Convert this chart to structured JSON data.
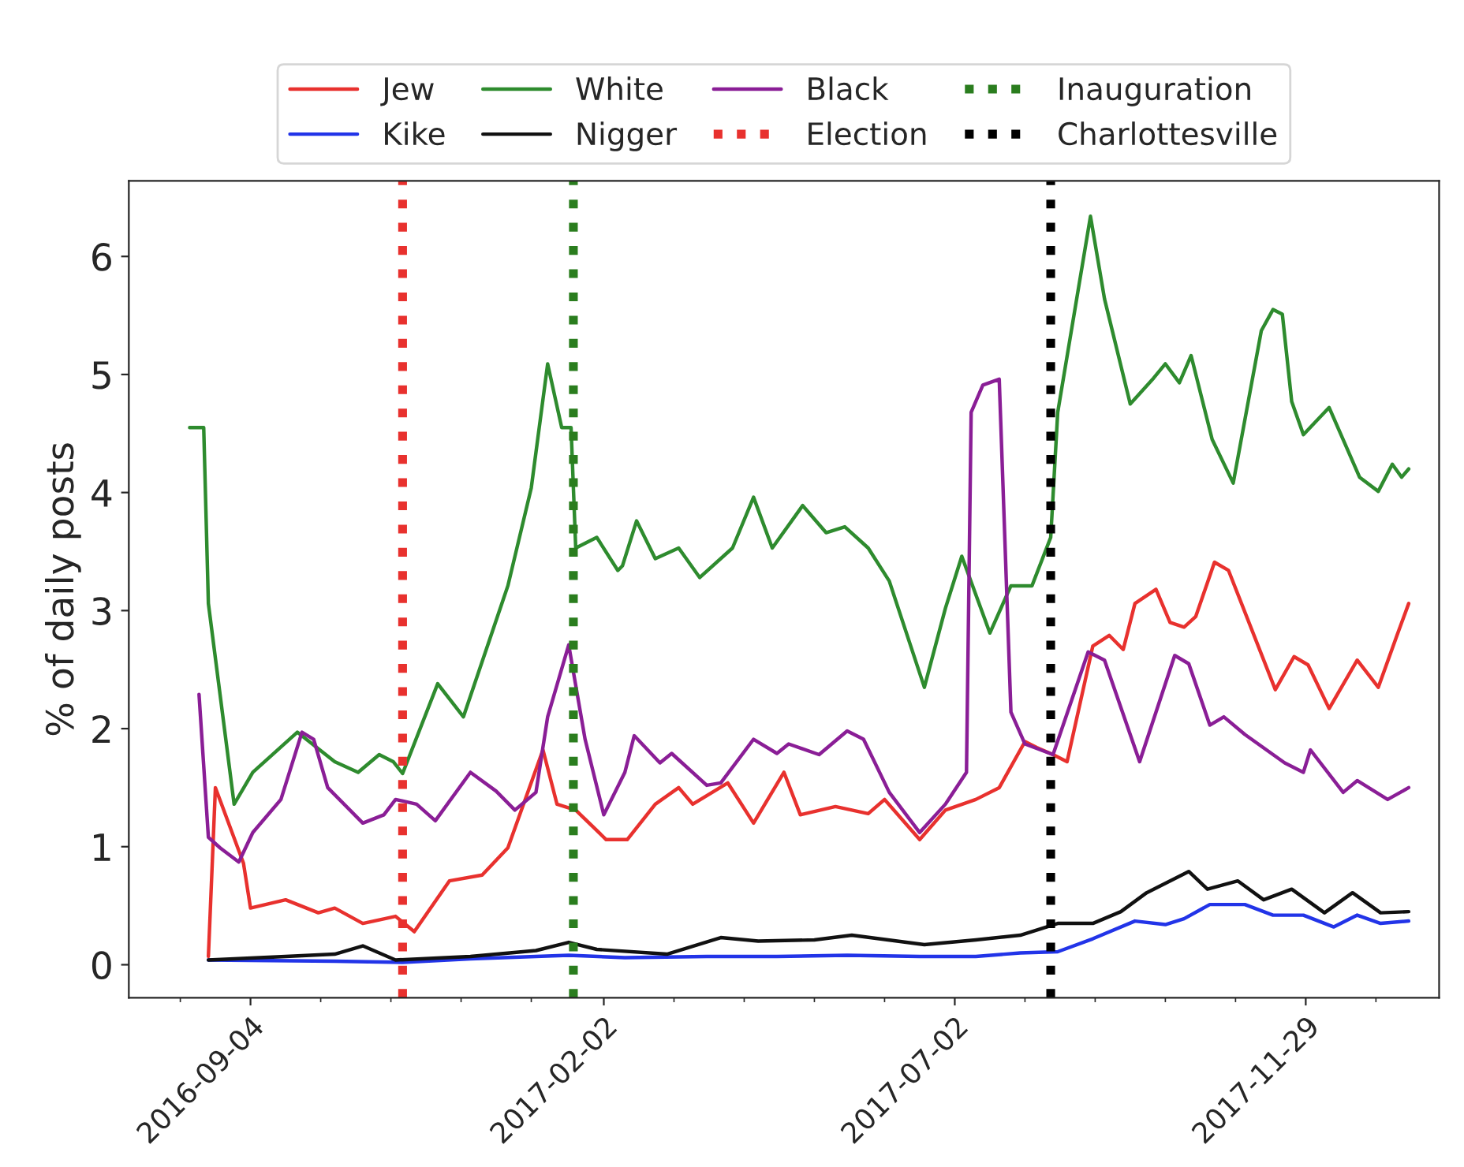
{
  "chart_data": {
    "type": "line",
    "ylabel": "% of daily posts",
    "xlim": [
      "2016-07-14",
      "2018-01-25"
    ],
    "ylim": [
      -0.28,
      6.64
    ],
    "xticks": [
      {
        "value": "2016-08-05",
        "label": null
      },
      "2016-09-04",
      {
        "value": "2016-10-04",
        "label": null
      },
      {
        "value": "2016-11-03",
        "label": null
      },
      {
        "value": "2016-12-03",
        "label": null
      },
      {
        "value": "2017-01-02",
        "label": null
      },
      "2017-02-02",
      {
        "value": "2017-03-04",
        "label": null
      },
      {
        "value": "2017-04-03",
        "label": null
      },
      {
        "value": "2017-05-03",
        "label": null
      },
      {
        "value": "2017-06-02",
        "label": null
      },
      "2017-07-02",
      {
        "value": "2017-08-01",
        "label": null
      },
      {
        "value": "2017-08-31",
        "label": null
      },
      {
        "value": "2017-09-30",
        "label": null
      },
      {
        "value": "2017-10-30",
        "label": null
      },
      "2017-11-29",
      {
        "value": "2017-12-29",
        "label": null
      }
    ],
    "yticks": [
      0,
      1,
      2,
      3,
      4,
      5,
      6
    ],
    "grid": false,
    "legend": "top",
    "line_style": "solid",
    "marker": "none",
    "series": [
      {
        "name": "Jew",
        "color": "#e8312e",
        "x": [
          "2016-08-17",
          "2016-08-20",
          "2016-09-01",
          "2016-09-04",
          "2016-09-19",
          "2016-10-03",
          "2016-10-10",
          "2016-10-22",
          "2016-11-05",
          "2016-11-13",
          "2016-11-28",
          "2016-12-12",
          "2016-12-23",
          "2017-01-07",
          "2017-01-13",
          "2017-01-21",
          "2017-02-03",
          "2017-02-12",
          "2017-02-24",
          "2017-03-06",
          "2017-03-12",
          "2017-03-27",
          "2017-04-07",
          "2017-04-20",
          "2017-04-27",
          "2017-05-12",
          "2017-05-26",
          "2017-06-02",
          "2017-06-17",
          "2017-06-28",
          "2017-07-11",
          "2017-07-21",
          "2017-08-01",
          "2017-08-06",
          "2017-08-13",
          "2017-08-19",
          "2017-08-30",
          "2017-09-06",
          "2017-09-12",
          "2017-09-17",
          "2017-09-26",
          "2017-10-02",
          "2017-10-08",
          "2017-10-13",
          "2017-10-21",
          "2017-10-27",
          "2017-11-16",
          "2017-11-24",
          "2017-11-30",
          "2017-12-09",
          "2017-12-21",
          "2017-12-30",
          "2018-01-07",
          "2018-01-12"
        ],
        "values": [
          0.07,
          1.5,
          0.86,
          0.48,
          0.55,
          0.44,
          0.48,
          0.35,
          0.41,
          0.28,
          0.71,
          0.76,
          0.99,
          1.82,
          1.36,
          1.31,
          1.06,
          1.06,
          1.36,
          1.5,
          1.36,
          1.54,
          1.2,
          1.63,
          1.27,
          1.34,
          1.28,
          1.4,
          1.06,
          1.31,
          1.4,
          1.5,
          1.89,
          1.84,
          1.78,
          1.72,
          2.7,
          2.79,
          2.67,
          3.06,
          3.18,
          2.9,
          2.86,
          2.95,
          3.41,
          3.34,
          2.33,
          2.61,
          2.54,
          2.17,
          2.58,
          2.35,
          2.79,
          3.06
        ]
      },
      {
        "name": "Kike",
        "color": "#2234e8",
        "x": [
          "2016-08-17",
          "2016-10-10",
          "2016-11-08",
          "2016-12-07",
          "2017-01-18",
          "2017-02-11",
          "2017-03-18",
          "2017-04-17",
          "2017-05-17",
          "2017-06-17",
          "2017-07-11",
          "2017-07-30",
          "2017-08-15",
          "2017-08-30",
          "2017-09-17",
          "2017-09-30",
          "2017-10-08",
          "2017-10-19",
          "2017-11-03",
          "2017-11-15",
          "2017-11-28",
          "2017-12-11",
          "2017-12-21",
          "2017-12-31",
          "2018-01-12"
        ],
        "values": [
          0.04,
          0.03,
          0.02,
          0.05,
          0.08,
          0.06,
          0.07,
          0.07,
          0.08,
          0.07,
          0.07,
          0.1,
          0.11,
          0.22,
          0.37,
          0.34,
          0.39,
          0.51,
          0.51,
          0.42,
          0.42,
          0.32,
          0.42,
          0.35,
          0.37
        ]
      },
      {
        "name": "White",
        "color": "#2e8b2e",
        "x": [
          "2016-08-09",
          "2016-08-15",
          "2016-08-17",
          "2016-08-28",
          "2016-09-05",
          "2016-09-24",
          "2016-10-10",
          "2016-10-20",
          "2016-10-29",
          "2016-11-04",
          "2016-11-08",
          "2016-11-23",
          "2016-12-04",
          "2016-12-23",
          "2017-01-02",
          "2017-01-09",
          "2017-01-15",
          "2017-01-19",
          "2017-01-21",
          "2017-01-30",
          "2017-02-08",
          "2017-02-10",
          "2017-02-16",
          "2017-02-24",
          "2017-03-06",
          "2017-03-15",
          "2017-03-29",
          "2017-04-07",
          "2017-04-15",
          "2017-04-28",
          "2017-05-08",
          "2017-05-16",
          "2017-05-26",
          "2017-06-04",
          "2017-06-19",
          "2017-06-28",
          "2017-07-05",
          "2017-07-17",
          "2017-07-26",
          "2017-08-04",
          "2017-08-12",
          "2017-08-15",
          "2017-08-29",
          "2017-09-04",
          "2017-09-15",
          "2017-09-25",
          "2017-09-30",
          "2017-10-06",
          "2017-10-11",
          "2017-10-20",
          "2017-10-29",
          "2017-11-10",
          "2017-11-15",
          "2017-11-19",
          "2017-11-23",
          "2017-11-28",
          "2017-12-09",
          "2017-12-22",
          "2017-12-30",
          "2018-01-05",
          "2018-01-09",
          "2018-01-12"
        ],
        "values": [
          4.55,
          4.55,
          3.06,
          1.36,
          1.63,
          1.97,
          1.72,
          1.63,
          1.78,
          1.72,
          1.62,
          2.38,
          2.1,
          3.21,
          4.04,
          5.09,
          4.55,
          4.55,
          3.53,
          3.62,
          3.34,
          3.38,
          3.76,
          3.44,
          3.53,
          3.28,
          3.53,
          3.96,
          3.53,
          3.89,
          3.66,
          3.71,
          3.53,
          3.25,
          2.35,
          3.02,
          3.46,
          2.81,
          3.21,
          3.21,
          3.62,
          4.68,
          6.34,
          5.64,
          4.75,
          4.97,
          5.09,
          4.93,
          5.16,
          4.45,
          4.08,
          5.37,
          5.55,
          5.51,
          4.77,
          4.49,
          4.72,
          4.13,
          4.01,
          4.24,
          4.13,
          4.2
        ]
      },
      {
        "name": "Nigger",
        "color": "#111111",
        "x": [
          "2016-08-17",
          "2016-09-19",
          "2016-10-10",
          "2016-10-22",
          "2016-11-05",
          "2016-12-07",
          "2017-01-04",
          "2017-01-18",
          "2017-01-30",
          "2017-03-01",
          "2017-03-24",
          "2017-04-09",
          "2017-05-03",
          "2017-05-19",
          "2017-06-19",
          "2017-07-11",
          "2017-07-30",
          "2017-08-15",
          "2017-08-30",
          "2017-09-11",
          "2017-09-22",
          "2017-10-10",
          "2017-10-18",
          "2017-10-31",
          "2017-11-11",
          "2017-11-23",
          "2017-12-07",
          "2017-12-19",
          "2017-12-31",
          "2018-01-12"
        ],
        "values": [
          0.04,
          0.07,
          0.09,
          0.16,
          0.04,
          0.07,
          0.12,
          0.19,
          0.13,
          0.09,
          0.23,
          0.2,
          0.21,
          0.25,
          0.17,
          0.21,
          0.25,
          0.35,
          0.35,
          0.45,
          0.61,
          0.79,
          0.64,
          0.71,
          0.55,
          0.64,
          0.44,
          0.61,
          0.44,
          0.45
        ]
      },
      {
        "name": "Black",
        "color": "#8a1e96",
        "x": [
          "2016-08-13",
          "2016-08-17",
          "2016-08-22",
          "2016-08-30",
          "2016-09-05",
          "2016-09-17",
          "2016-09-26",
          "2016-10-01",
          "2016-10-07",
          "2016-10-22",
          "2016-10-31",
          "2016-11-05",
          "2016-11-14",
          "2016-11-22",
          "2016-12-07",
          "2016-12-18",
          "2016-12-26",
          "2017-01-04",
          "2017-01-09",
          "2017-01-18",
          "2017-01-25",
          "2017-02-02",
          "2017-02-11",
          "2017-02-15",
          "2017-02-26",
          "2017-03-03",
          "2017-03-18",
          "2017-03-24",
          "2017-04-07",
          "2017-04-17",
          "2017-04-22",
          "2017-05-05",
          "2017-05-17",
          "2017-05-24",
          "2017-06-04",
          "2017-06-17",
          "2017-06-28",
          "2017-07-07",
          "2017-07-09",
          "2017-07-14",
          "2017-07-21",
          "2017-07-26",
          "2017-08-01",
          "2017-08-13",
          "2017-08-28",
          "2017-09-04",
          "2017-09-19",
          "2017-10-04",
          "2017-10-10",
          "2017-10-19",
          "2017-10-25",
          "2017-11-03",
          "2017-11-20",
          "2017-11-28",
          "2017-12-01",
          "2017-12-15",
          "2017-12-21",
          "2018-01-03",
          "2018-01-12"
        ],
        "values": [
          2.29,
          1.08,
          0.99,
          0.87,
          1.12,
          1.4,
          1.97,
          1.91,
          1.5,
          1.2,
          1.27,
          1.4,
          1.36,
          1.22,
          1.63,
          1.47,
          1.31,
          1.46,
          2.1,
          2.71,
          1.91,
          1.27,
          1.63,
          1.94,
          1.71,
          1.79,
          1.52,
          1.54,
          1.91,
          1.79,
          1.87,
          1.78,
          1.98,
          1.91,
          1.46,
          1.12,
          1.36,
          1.63,
          4.68,
          4.91,
          4.96,
          2.14,
          1.87,
          1.78,
          2.65,
          2.58,
          1.72,
          2.62,
          2.55,
          2.03,
          2.1,
          1.95,
          1.71,
          1.63,
          1.82,
          1.46,
          1.56,
          1.4,
          1.5
        ]
      }
    ],
    "ref_lines": [
      {
        "axis": "x",
        "value": "2016-11-08",
        "label": "Election",
        "color": "#e8312e",
        "line_style": "dotted"
      },
      {
        "axis": "x",
        "value": "2017-01-20",
        "label": "Inauguration",
        "color": "#2a7d1e",
        "line_style": "dotted"
      },
      {
        "axis": "x",
        "value": "2017-08-12",
        "label": "Charlottesville",
        "color": "#000000",
        "line_style": "dotted"
      }
    ]
  }
}
